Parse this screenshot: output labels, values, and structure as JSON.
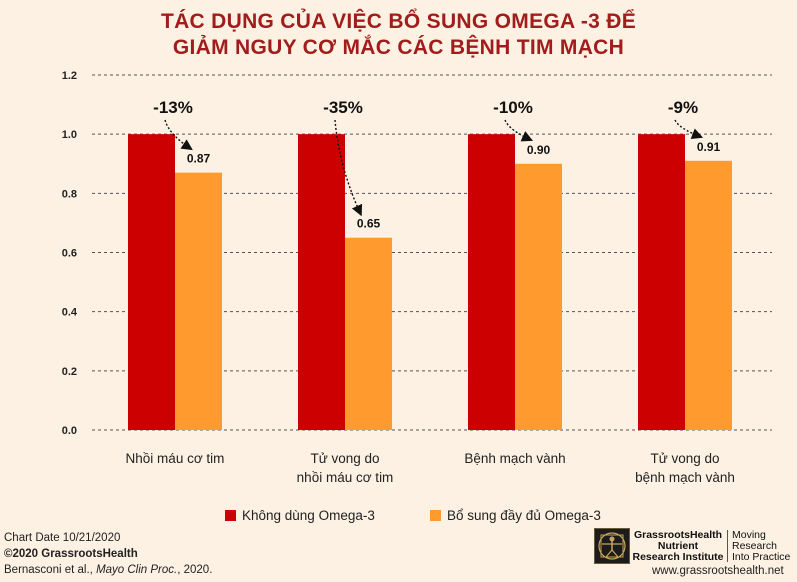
{
  "chart_data": {
    "type": "bar",
    "title_line1": "TÁC DỤNG CỦA VIỆC BỔ SUNG OMEGA -3 ĐỂ",
    "title_line2": "GIẢM NGUY CƠ MẮC CÁC BỆNH TIM MẠCH",
    "categories": [
      [
        "Nhồi máu cơ tim"
      ],
      [
        "Tử vong do",
        "nhồi máu cơ tim"
      ],
      [
        "Bệnh mạch vành"
      ],
      [
        "Tử vong do",
        "bệnh mạch vành"
      ]
    ],
    "series": [
      {
        "name": "Không dùng Omega-3",
        "color": "#cc0000",
        "values": [
          1.0,
          1.0,
          1.0,
          1.0
        ]
      },
      {
        "name": "Bổ sung đầy đủ Omega-3",
        "color": "#ff9a2e",
        "values": [
          0.87,
          0.65,
          0.9,
          0.91
        ]
      }
    ],
    "value_labels": [
      "0.87",
      "0.65",
      "0.90",
      "0.91"
    ],
    "annotations": [
      "-13%",
      "-35%",
      "-10%",
      "-9%"
    ],
    "y_ticks": [
      "0.0",
      "0.2",
      "0.4",
      "0.6",
      "0.8",
      "1.0",
      "1.2"
    ],
    "ylim": [
      0,
      1.2
    ],
    "grid": true,
    "legend_position": "bottom"
  },
  "footer": {
    "chart_date": "Chart Date 10/21/2020",
    "copyright": "©2020 GrassrootsHealth",
    "citation_authors": "Bernasconi et al., ",
    "citation_journal": "Mayo Clin Proc.",
    "citation_year": ", 2020."
  },
  "logo": {
    "name_line1": "GrassrootsHealth",
    "name_line2": "Nutrient",
    "name_line3": "Research Institute",
    "tagline_line1": "Moving",
    "tagline_line2": "Research",
    "tagline_line3": "Into Practice",
    "website": "www.grassrootshealth.net"
  }
}
